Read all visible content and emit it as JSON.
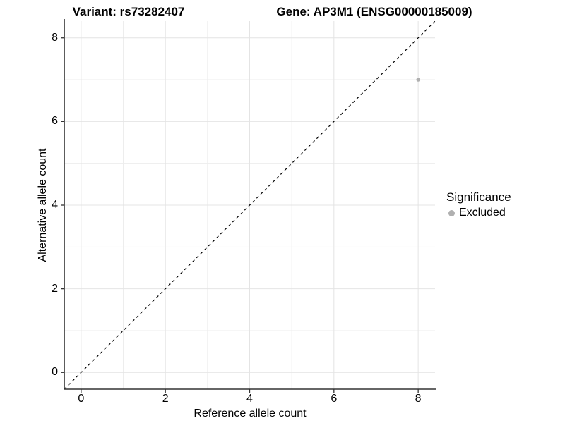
{
  "header": {
    "variant_title": "Variant: rs73282407",
    "gene_title": "Gene: AP3M1 (ENSG00000185009)"
  },
  "legend": {
    "title": "Significance",
    "items": [
      {
        "label": "Excluded",
        "color": "#b0b0b0",
        "marker": "circle"
      }
    ]
  },
  "chart_data": {
    "type": "scatter",
    "title": "Variant: rs73282407 | Gene: AP3M1 (ENSG00000185009)",
    "xlabel": "Reference allele count",
    "ylabel": "Alternative allele count",
    "xlim": [
      -0.4,
      8.4
    ],
    "ylim": [
      -0.4,
      8.4
    ],
    "x_ticks": [
      0,
      2,
      4,
      6,
      8
    ],
    "y_ticks": [
      0,
      2,
      4,
      6,
      8
    ],
    "x_minor_ticks": [
      1,
      3,
      5,
      7
    ],
    "y_minor_ticks": [
      1,
      3,
      5,
      7
    ],
    "grid": true,
    "legend_position": "right",
    "series": [
      {
        "name": "Excluded",
        "color": "#b0b0b0",
        "points": [
          {
            "x": 8,
            "y": 7
          }
        ]
      }
    ],
    "reference_line": {
      "style": "dashed",
      "color": "#000000",
      "slope": 1,
      "intercept": 0,
      "from": {
        "x": -0.4,
        "y": -0.4
      },
      "to": {
        "x": 8.4,
        "y": 8.4
      }
    }
  },
  "colors": {
    "background": "#ffffff",
    "grid_major": "#e4e4e4",
    "grid_minor": "#ededed",
    "axis_line": "#333333",
    "tick_mark": "#333333",
    "text": "#000000",
    "point": "#b0b0b0"
  }
}
